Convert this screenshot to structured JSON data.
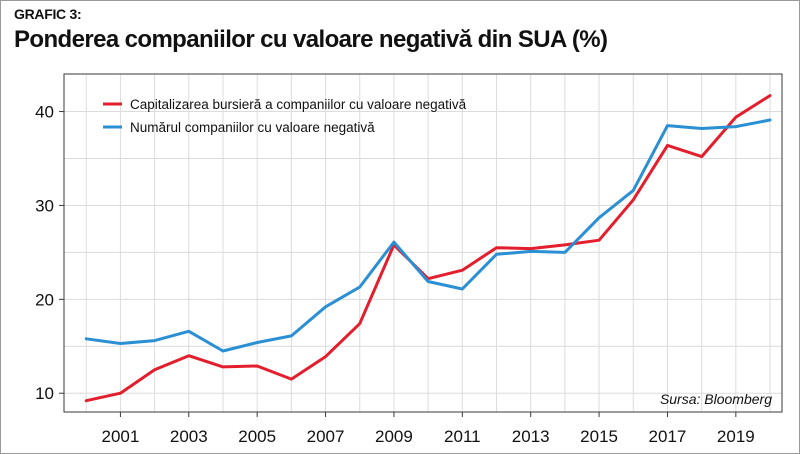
{
  "label": "GRAFIC 3:",
  "title": "Ponderea companiilor cu valoare negativă din SUA (%)",
  "source": "Sursa: Bloomberg",
  "colors": {
    "series1": "#e31e2d",
    "series2": "#2a8fd3",
    "grid": "#dcdcdc",
    "frame": "#3a3a3a"
  },
  "chart_data": {
    "type": "line",
    "title": "Ponderea companiilor cu valoare negativă din SUA (%)",
    "xlabel": "",
    "ylabel": "",
    "x": [
      2000,
      2001,
      2002,
      2003,
      2004,
      2005,
      2006,
      2007,
      2008,
      2009,
      2010,
      2011,
      2012,
      2013,
      2014,
      2015,
      2016,
      2017,
      2018,
      2019,
      2020
    ],
    "xticks": [
      2001,
      2003,
      2005,
      2007,
      2009,
      2011,
      2013,
      2015,
      2017,
      2019
    ],
    "yticks": [
      10,
      20,
      30,
      40
    ],
    "ylim": [
      8,
      44
    ],
    "grid": true,
    "legend_position": "top-left",
    "series": [
      {
        "name": "Capitalizarea bursieră a companiilor cu valoare negativă",
        "color": "#e31e2d",
        "values": [
          9.2,
          10.0,
          12.5,
          14.0,
          12.8,
          12.9,
          11.5,
          13.9,
          17.4,
          25.8,
          22.2,
          23.1,
          25.5,
          25.4,
          25.8,
          26.3,
          30.6,
          36.4,
          35.2,
          39.4,
          41.7
        ]
      },
      {
        "name": "Numărul companiilor cu valoare negativă",
        "color": "#2a8fd3",
        "values": [
          15.8,
          15.3,
          15.6,
          16.6,
          14.5,
          15.4,
          16.1,
          19.2,
          21.3,
          26.1,
          21.9,
          21.1,
          24.8,
          25.1,
          25.0,
          28.7,
          31.6,
          38.5,
          38.2,
          38.4,
          39.1
        ]
      }
    ]
  }
}
